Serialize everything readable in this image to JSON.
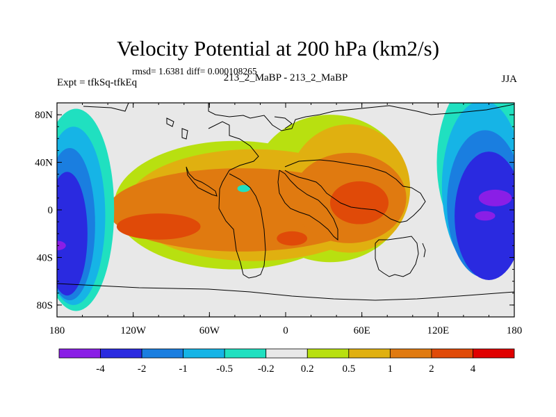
{
  "title": "Velocity Potential at 200 hPa (km2/s)",
  "stats_line": "rmsd= 1.6381 diff= 0.000108265",
  "experiment_label": "Expt = tfkSq-tfkEq",
  "model_label": "213_2_MaBP - 213_2_MaBP",
  "season_label": "JJA",
  "chart_data": {
    "type": "contour map",
    "title": "Velocity Potential at 200 hPa (km2/s)",
    "x": {
      "ticks": [
        -180,
        -120,
        -60,
        0,
        60,
        120,
        180
      ],
      "tick_labels": [
        "180",
        "120W",
        "60W",
        "0",
        "60E",
        "120E",
        "180"
      ],
      "range": [
        -180,
        180
      ]
    },
    "y": {
      "ticks": [
        80,
        40,
        0,
        -40,
        -80
      ],
      "tick_labels": [
        "80N",
        "40N",
        "0",
        "40S",
        "80S"
      ],
      "range": [
        -90,
        90
      ]
    },
    "colorbar": {
      "levels": [
        -4,
        -2,
        -1,
        -0.5,
        -0.2,
        0.2,
        0.5,
        1,
        2,
        4
      ],
      "labels": [
        "-4",
        "-2",
        "-1",
        "-0.5",
        "-0.2",
        "0.2",
        "0.5",
        "1",
        "2",
        "4"
      ],
      "colors": [
        "#8a1ee6",
        "#2a2ae0",
        "#1a7ee0",
        "#16b4e6",
        "#20e0c0",
        "#e8e8e8",
        "#b8e010",
        "#e0b010",
        "#e07a10",
        "#e04a08",
        "#e00000"
      ]
    },
    "fields": [
      {
        "level": 0.2,
        "color": "#b8e010",
        "regions": [
          {
            "center": [
              -40,
              4
            ],
            "semi_axes": [
              95,
              54
            ]
          },
          {
            "center": [
              35,
              18
            ],
            "semi_axes": [
              62,
              62
            ]
          }
        ]
      },
      {
        "level": 0.5,
        "color": "#e0b010",
        "regions": [
          {
            "center": [
              -25,
              4
            ],
            "semi_axes": [
              100,
              47
            ]
          },
          {
            "center": [
              50,
              18
            ],
            "semi_axes": [
              48,
              54
            ]
          }
        ]
      },
      {
        "level": 1,
        "color": "#e07a10",
        "regions": [
          {
            "center": [
              -35,
              0
            ],
            "semi_axes": [
              105,
              35
            ]
          },
          {
            "center": [
              50,
              10
            ],
            "semi_axes": [
              45,
              38
            ]
          }
        ]
      },
      {
        "level": 2,
        "color": "#e04a08",
        "regions": [
          {
            "center": [
              -100,
              -14
            ],
            "semi_axes": [
              33,
              11
            ]
          },
          {
            "center": [
              58,
              6
            ],
            "semi_axes": [
              23,
              18
            ]
          },
          {
            "center": [
              5,
              -24
            ],
            "semi_axes": [
              12,
              6
            ]
          }
        ]
      },
      {
        "level": -0.2,
        "color": "#20e0c0",
        "regions": [
          {
            "center": [
              155,
              40
            ],
            "semi_axes": [
              36,
              72
            ]
          },
          {
            "center": [
              -165,
              0
            ],
            "semi_axes": [
              30,
              85
            ]
          },
          {
            "center": [
              -33,
              18
            ],
            "semi_axes": [
              5,
              3
            ]
          }
        ]
      },
      {
        "level": -0.5,
        "color": "#16b4e6",
        "regions": [
          {
            "center": [
              155,
              20
            ],
            "semi_axes": [
              32,
              72
            ]
          },
          {
            "center": [
              -167,
              -5
            ],
            "semi_axes": [
              25,
              75
            ]
          }
        ]
      },
      {
        "level": -1,
        "color": "#1a7ee0",
        "regions": [
          {
            "center": [
              157,
              5
            ],
            "semi_axes": [
              30,
              62
            ]
          },
          {
            "center": [
              -170,
              -12
            ],
            "semi_axes": [
              20,
              64
            ]
          }
        ]
      },
      {
        "level": -2,
        "color": "#2a2ae0",
        "regions": [
          {
            "center": [
              160,
              -5
            ],
            "semi_axes": [
              27,
              54
            ]
          },
          {
            "center": [
              -172,
              -20
            ],
            "semi_axes": [
              16,
              52
            ]
          }
        ]
      },
      {
        "level": -4,
        "color": "#8a1ee6",
        "regions": [
          {
            "center": [
              165,
              10
            ],
            "semi_axes": [
              13,
              7
            ]
          },
          {
            "center": [
              -180,
              -30
            ],
            "semi_axes": [
              7,
              4
            ]
          },
          {
            "center": [
              157,
              -5
            ],
            "semi_axes": [
              8,
              4
            ]
          }
        ]
      }
    ]
  }
}
